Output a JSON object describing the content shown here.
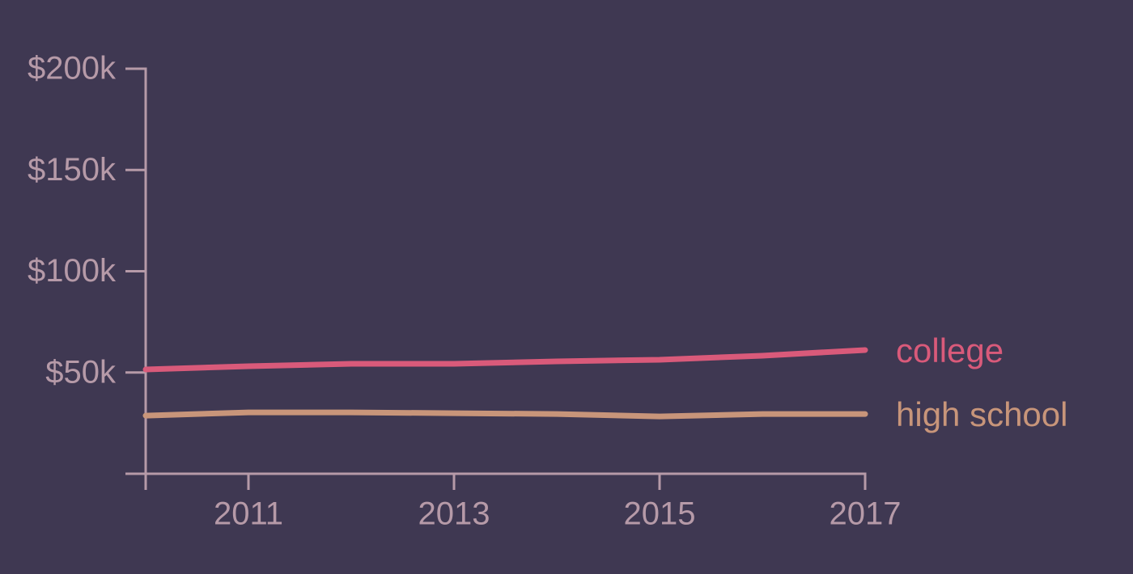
{
  "chart_data": {
    "type": "line",
    "x": [
      2010,
      2011,
      2012,
      2013,
      2014,
      2015,
      2016,
      2017
    ],
    "series": [
      {
        "name": "college",
        "color": "#d95a7a",
        "values": [
          51500,
          53100,
          54300,
          54300,
          55500,
          56300,
          58300,
          61100
        ]
      },
      {
        "name": "high school",
        "color": "#c8957a",
        "values": [
          28700,
          30300,
          30300,
          29900,
          29500,
          28300,
          29500,
          29500
        ]
      }
    ],
    "xlim": [
      2010,
      2017
    ],
    "xticks": [
      2011,
      2013,
      2015,
      2017
    ],
    "ylim": [
      0,
      200000
    ],
    "yticks": [
      {
        "value": 50000,
        "label": "$50k"
      },
      {
        "value": 100000,
        "label": "$100k"
      },
      {
        "value": 150000,
        "label": "$150k"
      },
      {
        "value": 200000,
        "label": "$200k"
      }
    ]
  }
}
